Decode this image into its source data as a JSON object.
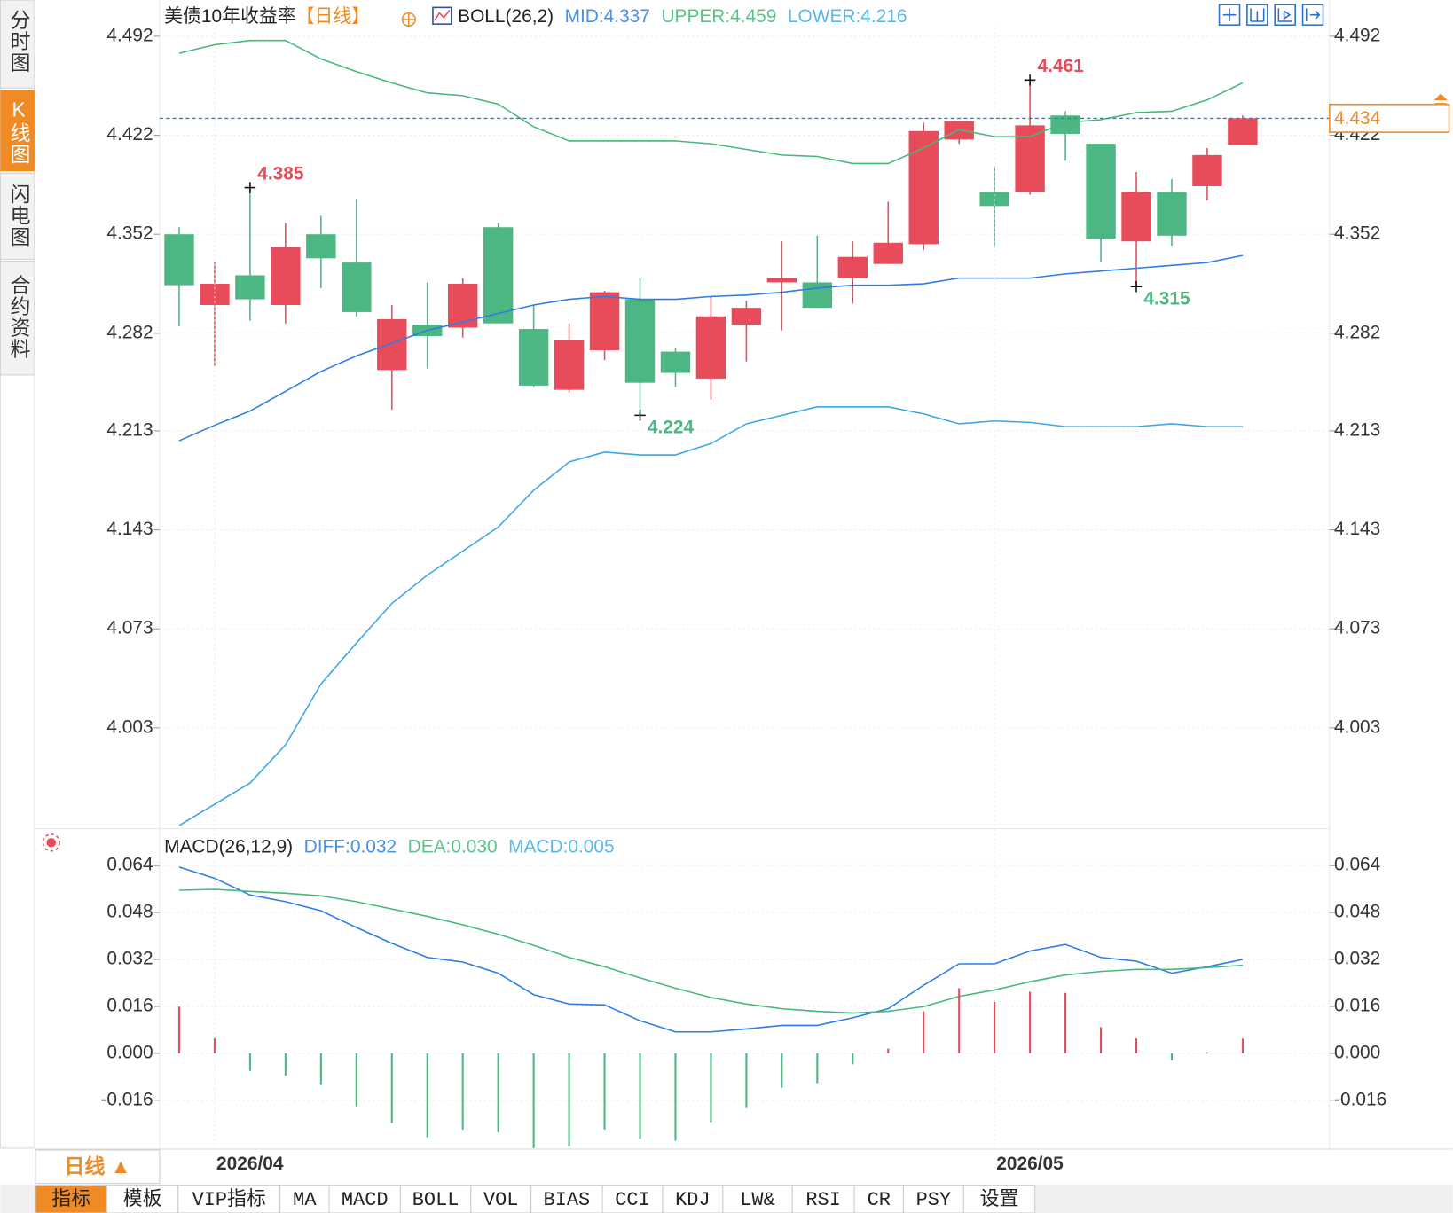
{
  "sidebar_tabs": [
    "分时图",
    "K线图",
    "闪电图",
    "合约资料"
  ],
  "period_selector": "日线 ▲",
  "indicator_tabs": [
    "指标",
    "模板",
    "VIP指标",
    "MA",
    "MACD",
    "BOLL",
    "VOL",
    "BIAS",
    "CCI",
    "KDJ",
    "LW&",
    "RSI",
    "CR",
    "PSY",
    "设置"
  ],
  "chart_data": [
    {
      "type": "candlestick",
      "title": "美债10年收益率",
      "period_label": "【日线】",
      "indicator": "BOLL(26,2)",
      "up_color": "#e84b5a",
      "down_color": "#4cb782",
      "categories": [
        null,
        "2026/04",
        null,
        null,
        null,
        null,
        null,
        null,
        null,
        null,
        null,
        null,
        null,
        null,
        null,
        null,
        null,
        null,
        null,
        null,
        null,
        null,
        null,
        "2026/05",
        null,
        null,
        null,
        null,
        null,
        null,
        null
      ],
      "open": [
        4.352,
        4.302,
        4.323,
        4.302,
        4.352,
        4.332,
        4.256,
        4.288,
        4.286,
        4.357,
        4.285,
        4.242,
        4.27,
        4.306,
        4.269,
        4.25,
        4.288,
        4.318,
        4.318,
        4.321,
        4.331,
        4.345,
        4.419,
        4.382,
        4.382,
        4.436,
        4.416,
        4.347,
        4.382,
        4.386,
        4.415
      ],
      "high": [
        4.357,
        4.332,
        4.385,
        4.36,
        4.365,
        4.377,
        4.302,
        4.318,
        4.321,
        4.36,
        4.302,
        4.289,
        4.312,
        4.321,
        4.272,
        4.308,
        4.305,
        4.347,
        4.351,
        4.347,
        4.375,
        4.431,
        4.432,
        4.4,
        4.461,
        4.439,
        4.416,
        4.396,
        4.391,
        4.413,
        4.436
      ],
      "low": [
        4.287,
        4.259,
        4.291,
        4.289,
        4.314,
        4.294,
        4.228,
        4.257,
        4.279,
        4.289,
        4.244,
        4.24,
        4.263,
        4.224,
        4.244,
        4.235,
        4.262,
        4.284,
        4.3,
        4.303,
        4.331,
        4.341,
        4.416,
        4.344,
        4.38,
        4.404,
        4.332,
        4.315,
        4.344,
        4.376,
        4.415
      ],
      "close": [
        4.316,
        4.317,
        4.306,
        4.343,
        4.335,
        4.297,
        4.292,
        4.28,
        4.317,
        4.289,
        4.245,
        4.277,
        4.311,
        4.247,
        4.254,
        4.294,
        4.3,
        4.321,
        4.3,
        4.336,
        4.346,
        4.425,
        4.432,
        4.372,
        4.429,
        4.423,
        4.349,
        4.382,
        4.351,
        4.408,
        4.434
      ],
      "series": [
        {
          "name": "MID:4.337",
          "color": "#2b7de9",
          "legend_color": "#4a90e2",
          "values": [
            4.206,
            4.217,
            4.227,
            4.241,
            4.255,
            4.266,
            4.275,
            4.284,
            4.29,
            4.296,
            4.302,
            4.306,
            4.308,
            4.306,
            4.306,
            4.308,
            4.309,
            4.311,
            4.314,
            4.316,
            4.316,
            4.317,
            4.321,
            4.321,
            4.321,
            4.324,
            4.326,
            4.328,
            4.33,
            4.332,
            4.337
          ]
        },
        {
          "name": "UPPER:4.459",
          "color": "#45b97c",
          "legend_color": "#5cc28a",
          "values": [
            4.48,
            4.486,
            4.489,
            4.489,
            4.476,
            4.467,
            4.459,
            4.452,
            4.45,
            4.444,
            4.428,
            4.418,
            4.418,
            4.418,
            4.418,
            4.416,
            4.412,
            4.408,
            4.407,
            4.402,
            4.402,
            4.413,
            4.426,
            4.421,
            4.421,
            4.431,
            4.433,
            4.438,
            4.439,
            4.447,
            4.459
          ]
        },
        {
          "name": "LOWER:4.216",
          "color": "#3aa8e6",
          "legend_color": "#5bb8e8",
          "values": [
            3.934,
            3.949,
            3.964,
            3.991,
            4.034,
            4.063,
            4.091,
            4.111,
            4.128,
            4.145,
            4.171,
            4.191,
            4.198,
            4.196,
            4.196,
            4.204,
            4.218,
            4.224,
            4.23,
            4.23,
            4.23,
            4.225,
            4.218,
            4.22,
            4.219,
            4.216,
            4.216,
            4.216,
            4.218,
            4.216,
            4.216
          ]
        }
      ],
      "annotations": [
        {
          "text": "4.385",
          "value": 4.385
        },
        {
          "text": "4.224",
          "value": 4.224
        },
        {
          "text": "4.461",
          "value": 4.461
        },
        {
          "text": "4.315",
          "value": 4.315
        }
      ],
      "last_price_color": "#f08a24",
      "ylim": [
        3.933,
        4.498
      ],
      "yticks": [
        4.492,
        4.422,
        4.352,
        4.282,
        4.213,
        4.143,
        4.073,
        4.003
      ],
      "grid": true
    },
    {
      "type": "macd",
      "indicator": "MACD(26,12,9)",
      "up_color": "#e84b5a",
      "down_color": "#4cb782",
      "series": [
        {
          "name": "DIFF:0.032",
          "color": "#2b7de9",
          "legend_color": "#4a90e2",
          "values": [
            0.0635,
            0.0597,
            0.054,
            0.0517,
            0.0486,
            0.0429,
            0.0375,
            0.0327,
            0.0311,
            0.0273,
            0.02,
            0.0168,
            0.0165,
            0.0111,
            0.0073,
            0.0073,
            0.0083,
            0.0095,
            0.0095,
            0.0121,
            0.0152,
            0.0232,
            0.0305,
            0.0305,
            0.0349,
            0.0371,
            0.0327,
            0.0314,
            0.0273,
            0.0295,
            0.032
          ]
        },
        {
          "name": "DEA:0.030",
          "color": "#45b97c",
          "legend_color": "#5cc28a",
          "values": [
            0.0556,
            0.0559,
            0.0552,
            0.0546,
            0.0537,
            0.0517,
            0.0492,
            0.0467,
            0.0438,
            0.0406,
            0.0368,
            0.0327,
            0.0295,
            0.0257,
            0.0222,
            0.019,
            0.0168,
            0.0152,
            0.0143,
            0.0137,
            0.0143,
            0.0159,
            0.0194,
            0.0216,
            0.0244,
            0.0267,
            0.0279,
            0.0286,
            0.0286,
            0.0292,
            0.03
          ]
        },
        {
          "name": "MACD:0.005",
          "type": "bar",
          "legend_color": "#5bb8e8",
          "values": [
            0.0159,
            0.0051,
            -0.006,
            -0.0076,
            -0.0108,
            -0.0181,
            -0.0238,
            -0.0286,
            -0.026,
            -0.027,
            -0.0324,
            -0.0317,
            -0.026,
            -0.0292,
            -0.0298,
            -0.0235,
            -0.0187,
            -0.0117,
            -0.0102,
            -0.0038,
            0.0016,
            0.0143,
            0.0222,
            0.0175,
            0.021,
            0.0206,
            0.0089,
            0.0051,
            -0.0025,
            0.0003,
            0.005
          ]
        }
      ],
      "ylim": [
        -0.033,
        0.075
      ],
      "yticks": [
        0.064,
        0.048,
        0.032,
        0.016,
        {
          "value": 0,
          "label": "0.000"
        },
        -0.016
      ],
      "grid": true
    }
  ]
}
